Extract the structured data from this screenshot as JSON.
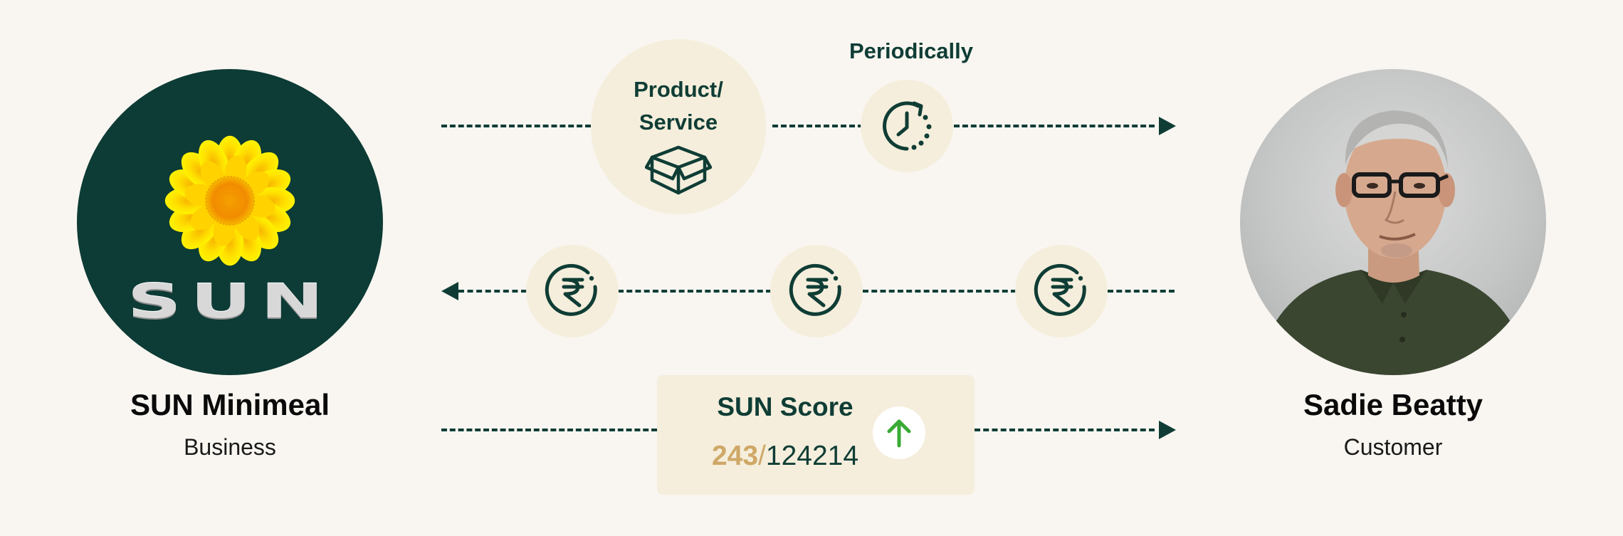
{
  "business": {
    "logo_text": "SUN",
    "name": "SUN Minimeal",
    "role": "Business"
  },
  "customer": {
    "name": "Sadie Beatty",
    "role": "Customer"
  },
  "flow": {
    "product_label_line1": "Product/",
    "product_label_line2": "Service",
    "periodically_label": "Periodically"
  },
  "score": {
    "title": "SUN Score",
    "value": "243",
    "slash": "/",
    "total": "124214"
  },
  "colors": {
    "dark_green": "#0f3d35",
    "cream": "#f5eedc",
    "background": "#f9f6f1",
    "gold": "#cfa867",
    "up_arrow": "#3aaa35"
  },
  "icons": [
    "sunflower-logo",
    "box-icon",
    "clock-refresh-icon",
    "rupee-icon",
    "arrow-up-icon"
  ]
}
